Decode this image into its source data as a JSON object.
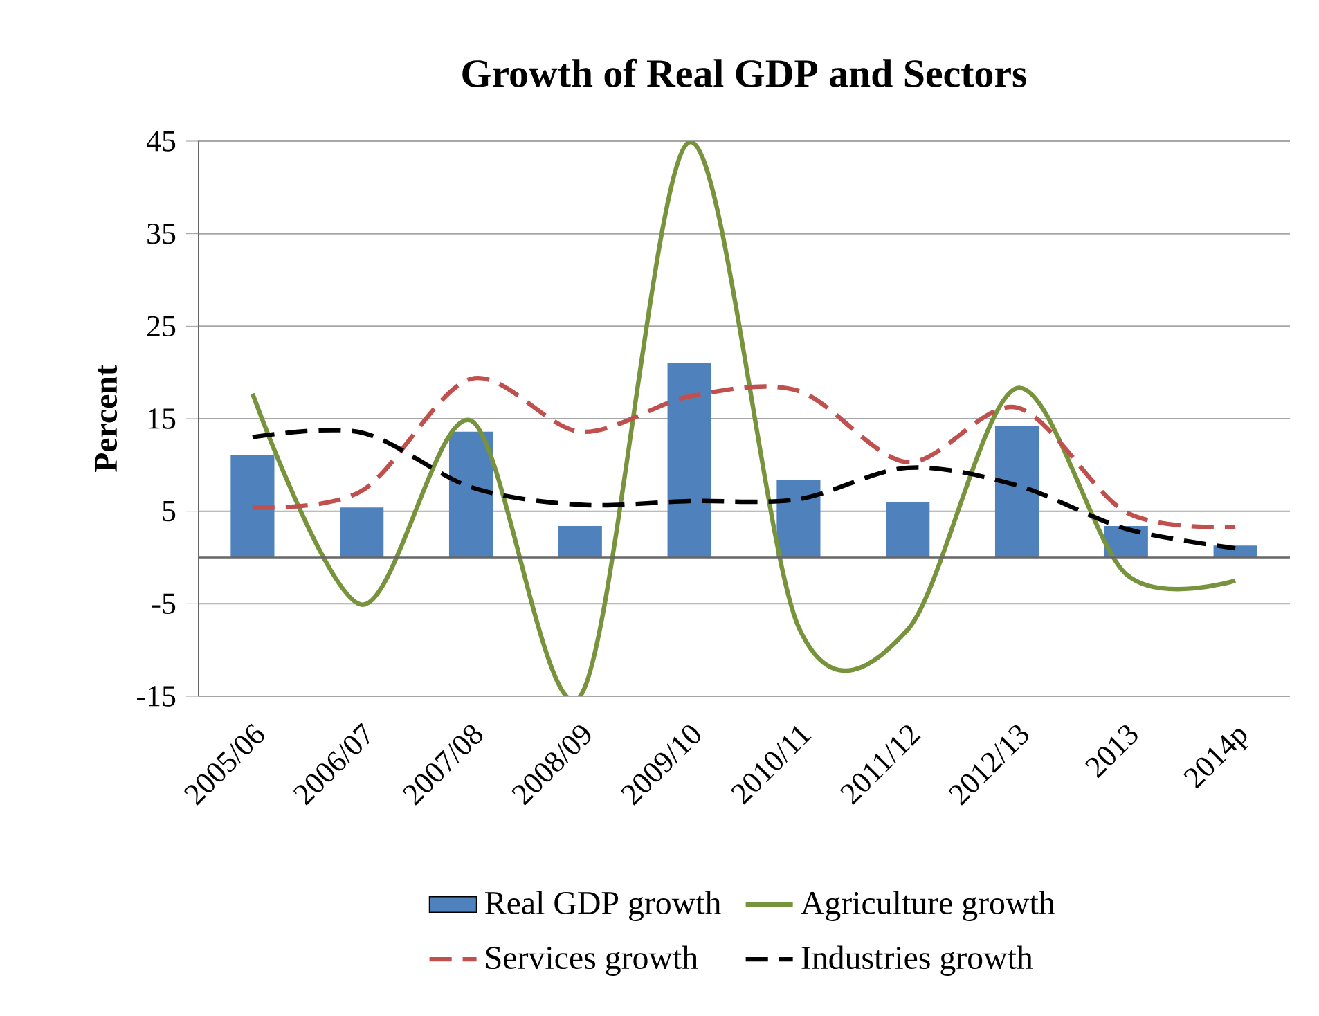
{
  "chart_data": {
    "type": "bar",
    "title": "Growth of Real GDP and Sectors",
    "ylabel": "Percent",
    "categories": [
      "2005/06",
      "2006/07",
      "2007/08",
      "2008/09",
      "2009/10",
      "2010/11",
      "2011/12",
      "2012/13",
      "2013",
      "2014p"
    ],
    "series": [
      {
        "name": "Real GDP growth",
        "type": "bar",
        "color": "#4f81bd",
        "values": [
          11.1,
          5.4,
          13.6,
          3.4,
          21,
          8.4,
          6,
          14.2,
          3.4,
          1.3
        ]
      },
      {
        "name": "Agriculture growth",
        "type": "line",
        "line_style": "solid",
        "color": "#77933c",
        "values": [
          17.7,
          -5.1,
          14.8,
          -15,
          44.9,
          -7.5,
          -7.8,
          18.3,
          -1.8,
          -2.5
        ]
      },
      {
        "name": "Services growth",
        "type": "line",
        "line_style": "dashed",
        "color": "#c0504d",
        "values": [
          5.4,
          7.2,
          19.3,
          13.6,
          17.4,
          18,
          10.3,
          16.2,
          4.9,
          3.3
        ]
      },
      {
        "name": "Industries growth",
        "type": "line",
        "line_style": "dashed",
        "color": "#000000",
        "values": [
          13,
          13.5,
          7.6,
          5.7,
          6.1,
          6.3,
          9.7,
          7.8,
          3.1,
          1
        ]
      }
    ],
    "ylim": [
      -15,
      45
    ],
    "yticks": [
      -15,
      -5,
      5,
      15,
      25,
      35,
      45
    ],
    "grid": "y",
    "legend": "bottom"
  }
}
